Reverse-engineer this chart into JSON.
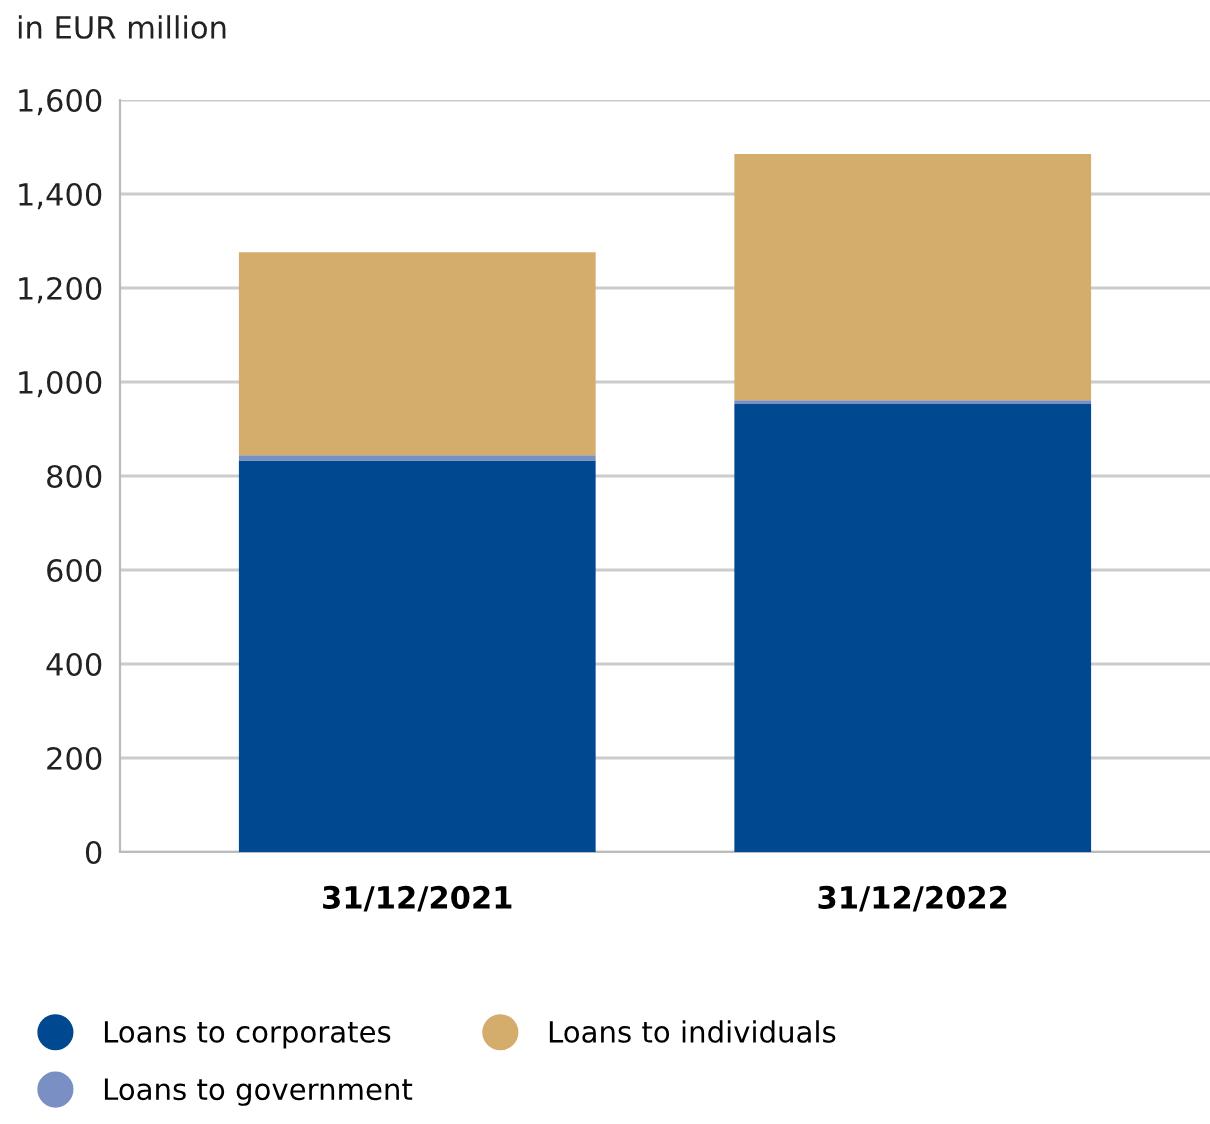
{
  "chart_data": {
    "type": "bar",
    "title": "in EUR million",
    "categories": [
      "31/12/2021",
      "31/12/2022"
    ],
    "stacked": true,
    "series": [
      {
        "name": "Loans to corporates",
        "color": "#00488f",
        "values": [
          833,
          953
        ]
      },
      {
        "name": "Loans to government",
        "color": "#7a8fc4",
        "values": [
          11,
          8
        ]
      },
      {
        "name": "Loans to individuals",
        "color": "#d4ac6b",
        "values": [
          432,
          524
        ]
      }
    ],
    "ylim": [
      0,
      1600
    ],
    "yticks": [
      0,
      {
        "value": 200,
        "label": "200"
      },
      {
        "value": 400,
        "label": "400"
      },
      {
        "value": 600,
        "label": "600"
      },
      {
        "value": 800,
        "label": "800"
      },
      {
        "value": 1000,
        "label": "1,000"
      },
      {
        "value": 1200,
        "label": "1,200"
      },
      {
        "value": 1400,
        "label": "1,400"
      },
      {
        "value": 1600,
        "label": "1,600"
      }
    ],
    "grid": "y",
    "legend": "bottom"
  }
}
